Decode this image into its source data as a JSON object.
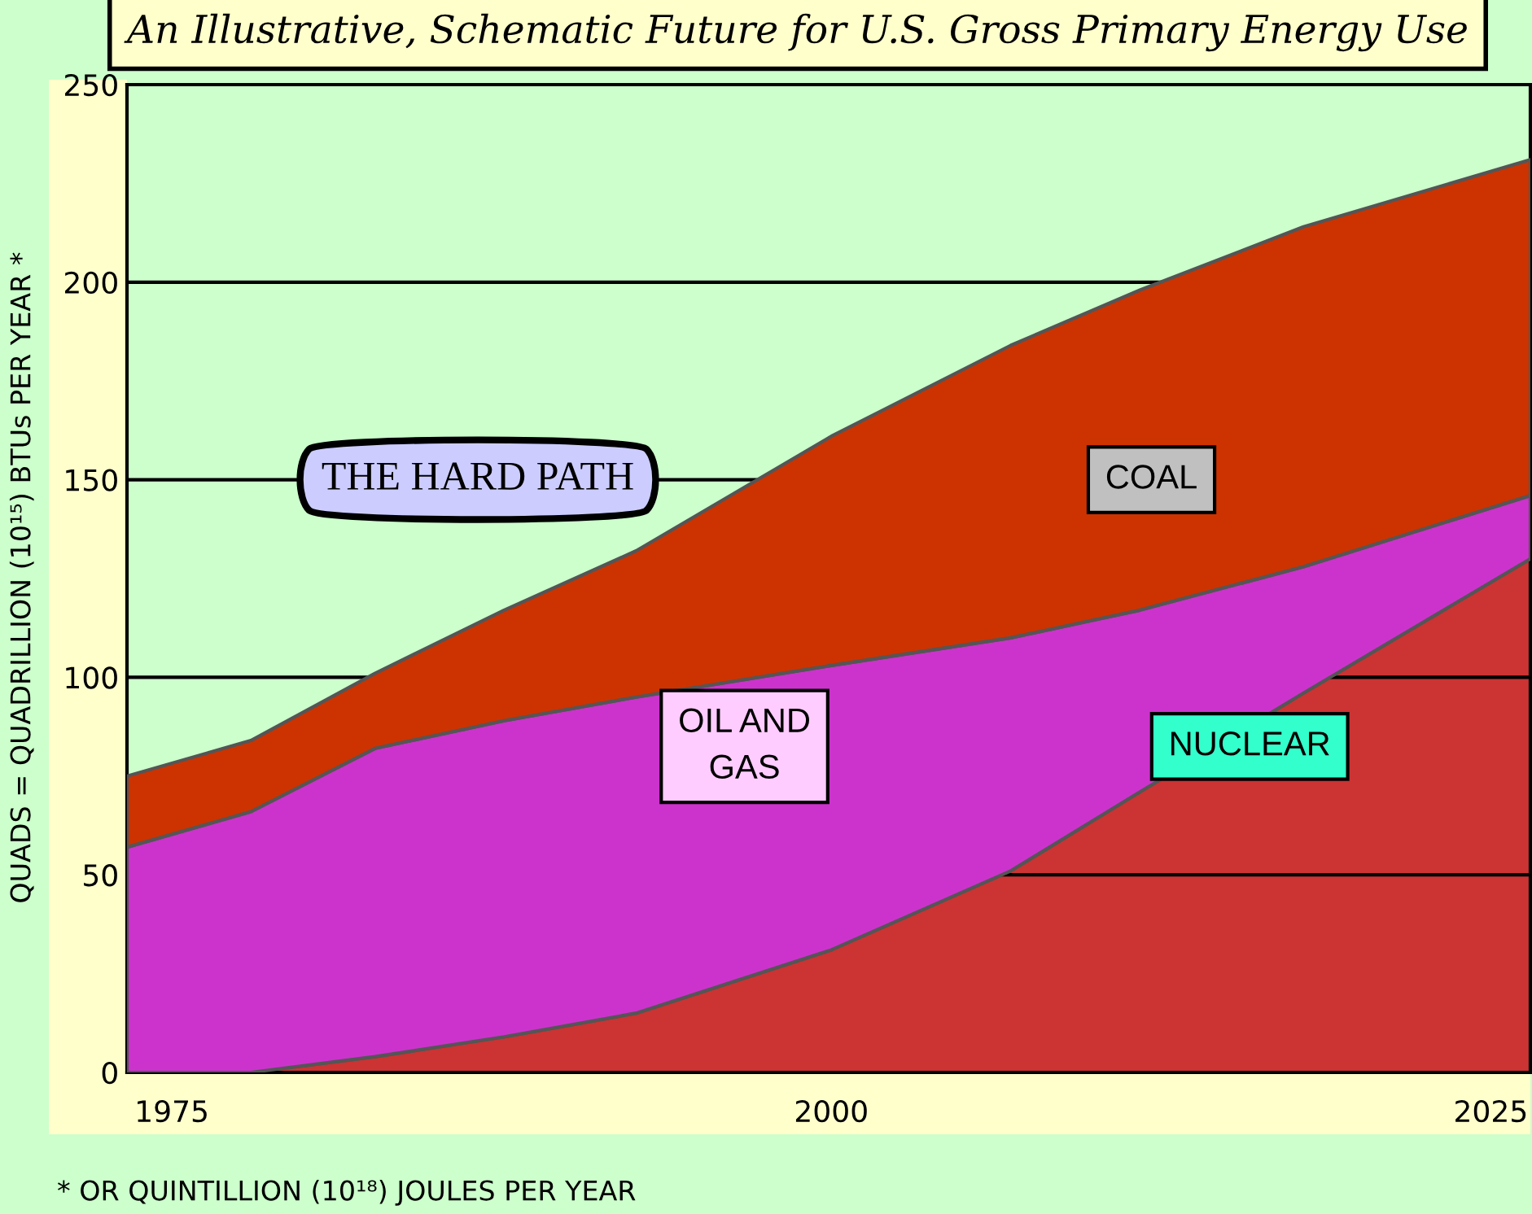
{
  "chart_data": {
    "type": "area",
    "stacked": true,
    "title": "An Illustrative, Schematic Future for U.S. Gross Primary Energy Use",
    "ylabel": "QUADS = QUADRILLION (10¹⁵) BTUs PER YEAR *",
    "x": [
      1973.3,
      1978,
      1982.7,
      1987.6,
      1992.6,
      2000,
      2006.8,
      2011.7,
      2017.9,
      2026.5
    ],
    "series": [
      {
        "name": "NUCLEAR",
        "color": "#cc3333",
        "values": [
          0,
          0,
          4,
          9,
          15,
          31,
          51,
          71,
          96,
          130
        ]
      },
      {
        "name": "OIL AND\nGAS",
        "color": "#cc33cc",
        "values": [
          57,
          66,
          78,
          80,
          80,
          72,
          59,
          46,
          32,
          16
        ]
      },
      {
        "name": "COAL",
        "color": "#cc3300",
        "values": [
          18,
          18,
          19,
          28,
          37,
          58,
          74,
          81,
          86,
          85
        ]
      }
    ],
    "xlim": [
      1973.3,
      2026.5
    ],
    "xticks": [
      1975,
      2000,
      2025
    ],
    "ylim": [
      0,
      250
    ],
    "yticks": [
      0,
      50,
      100,
      150,
      200,
      250
    ],
    "grid": "y",
    "legend": false,
    "annotations": [
      "THE HARD PATH",
      "* OR QUINTILLION (10¹⁸) JOULES PER YEAR"
    ]
  }
}
